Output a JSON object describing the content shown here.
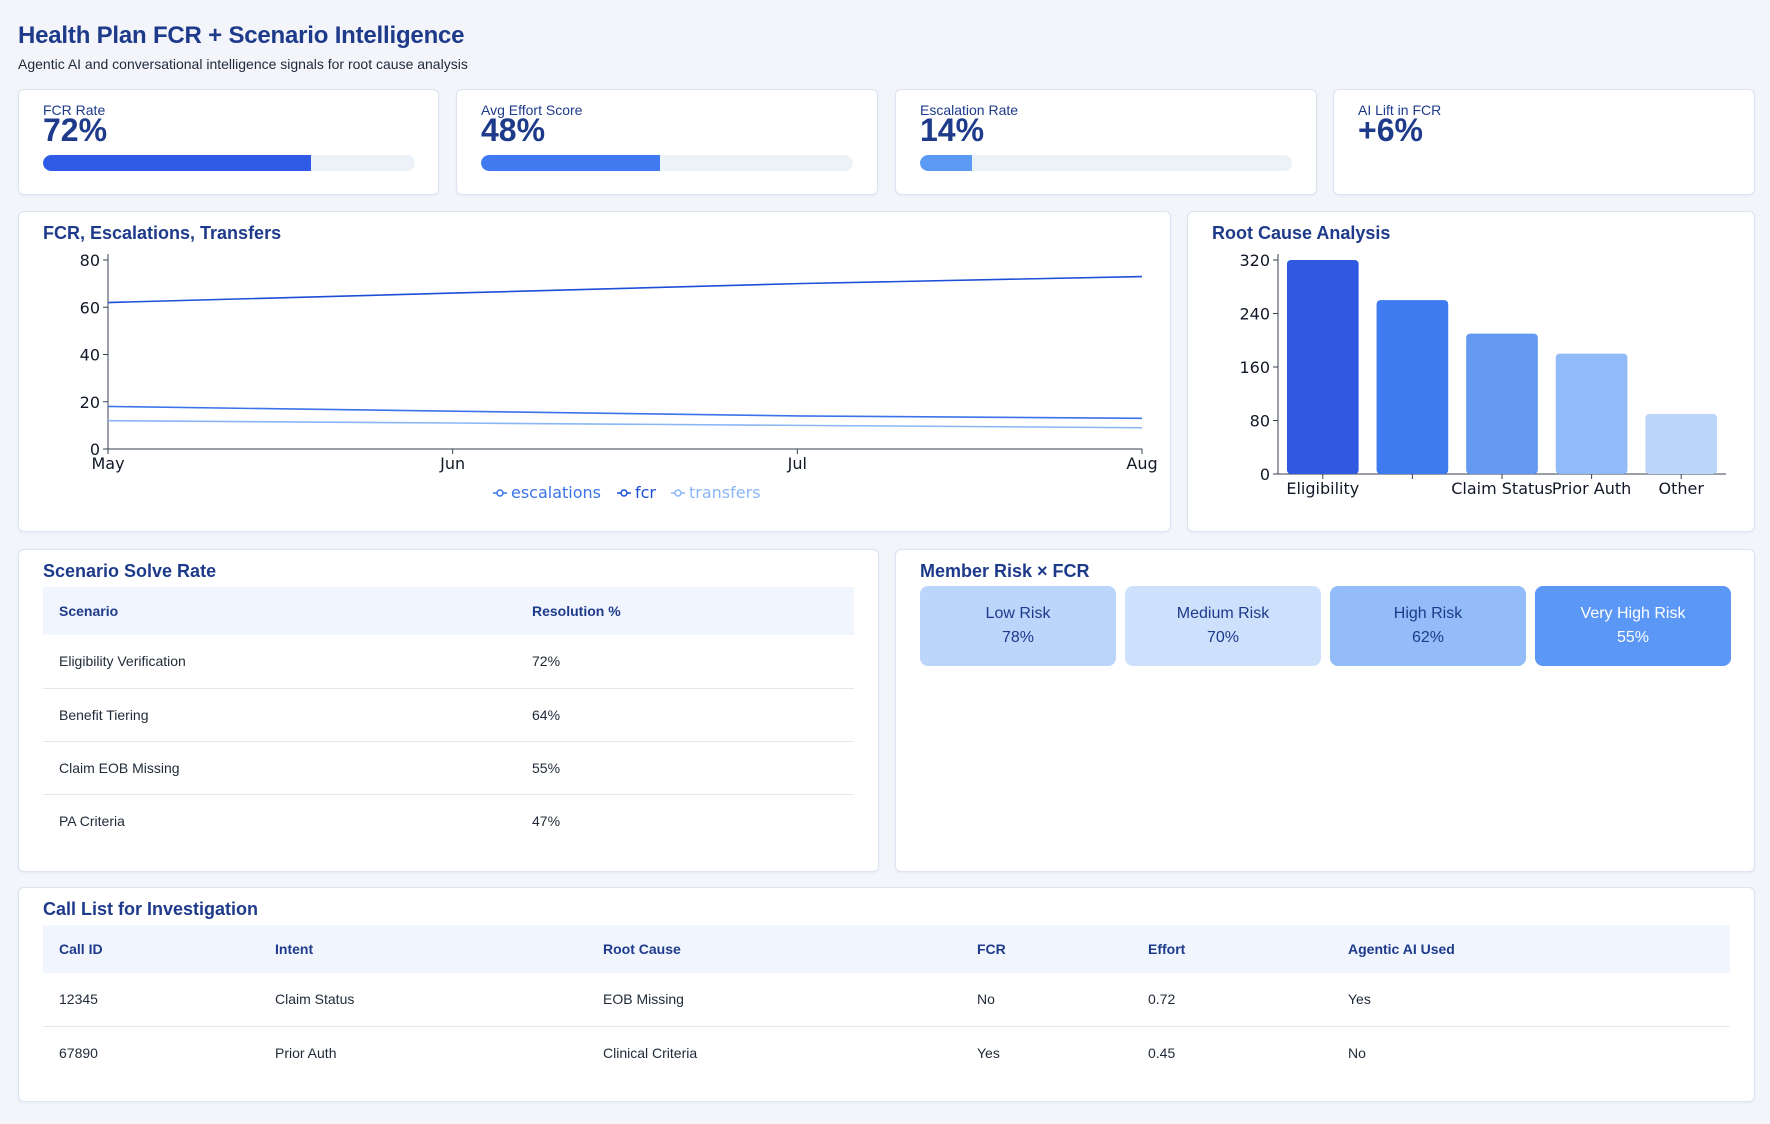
{
  "header": {
    "title": "Health Plan FCR + Scenario Intelligence",
    "subtitle": "Agentic AI and conversational intelligence signals for root cause analysis"
  },
  "kpis": [
    {
      "label": "FCR Rate",
      "value": "72%",
      "progress": 0.72,
      "color": "#2f5be6"
    },
    {
      "label": "Avg Effort Score",
      "value": "48%",
      "progress": 0.48,
      "color": "#3f7af0"
    },
    {
      "label": "Escalation Rate",
      "value": "14%",
      "progress": 0.14,
      "color": "#5b9bf5"
    },
    {
      "label": "AI Lift in FCR",
      "value": "+6%"
    }
  ],
  "trend_chart": {
    "title": "FCR, Escalations, Transfers",
    "chart_data": {
      "type": "line",
      "x": [
        "May",
        "Jun",
        "Jul",
        "Aug"
      ],
      "ylim": [
        0,
        80
      ],
      "yticks": [
        "0",
        "20",
        "40",
        "60",
        "80"
      ],
      "series": [
        {
          "name": "escalations",
          "values": [
            18,
            16,
            14,
            13
          ],
          "color": "#3b74ea"
        },
        {
          "name": "fcr",
          "values": [
            62,
            66,
            70,
            73
          ],
          "color": "#1d4fd8"
        },
        {
          "name": "transfers",
          "values": [
            12,
            11,
            10,
            9
          ],
          "color": "#8ab6f8"
        }
      ],
      "legend": [
        "escalations",
        "fcr",
        "transfers"
      ]
    }
  },
  "root_cause_chart": {
    "title": "Root Cause Analysis",
    "chart_data": {
      "type": "bar",
      "categories": [
        "Eligibility",
        "",
        "Claim Status",
        "Prior Auth",
        "Other"
      ],
      "values": [
        320,
        260,
        210,
        180,
        90
      ],
      "colors": [
        "#2f59e0",
        "#3f7bf0",
        "#6499f2",
        "#90bbf8",
        "#bcd6fb"
      ],
      "ylim": [
        0,
        320
      ],
      "yticks": [
        "0",
        "80",
        "160",
        "240",
        "320"
      ]
    }
  },
  "scenario_table": {
    "title": "Scenario Solve Rate",
    "headers": [
      "Scenario",
      "Resolution %"
    ],
    "rows": [
      [
        "Eligibility Verification",
        "72%"
      ],
      [
        "Benefit Tiering",
        "64%"
      ],
      [
        "Claim EOB Missing",
        "55%"
      ],
      [
        "PA Criteria",
        "47%"
      ]
    ]
  },
  "risk": {
    "title": "Member Risk × FCR",
    "tiles": [
      {
        "label": "Low Risk",
        "value": "78%",
        "bg": "#bcd5fb",
        "fg": "#1e3a8a"
      },
      {
        "label": "Medium Risk",
        "value": "70%",
        "bg": "#cde0fc",
        "fg": "#1e3a8a"
      },
      {
        "label": "High Risk",
        "value": "62%",
        "bg": "#93bcf8",
        "fg": "#1e3a8a"
      },
      {
        "label": "Very High Risk",
        "value": "55%",
        "bg": "#5b97f5",
        "fg": "#ffffff"
      }
    ]
  },
  "call_table": {
    "title": "Call List for Investigation",
    "headers": [
      "Call ID",
      "Intent",
      "Root Cause",
      "FCR",
      "Effort",
      "Agentic AI Used"
    ],
    "rows": [
      [
        "12345",
        "Claim Status",
        "EOB Missing",
        "No",
        "0.72",
        "Yes"
      ],
      [
        "67890",
        "Prior Auth",
        "Clinical Criteria",
        "Yes",
        "0.45",
        "No"
      ]
    ]
  }
}
